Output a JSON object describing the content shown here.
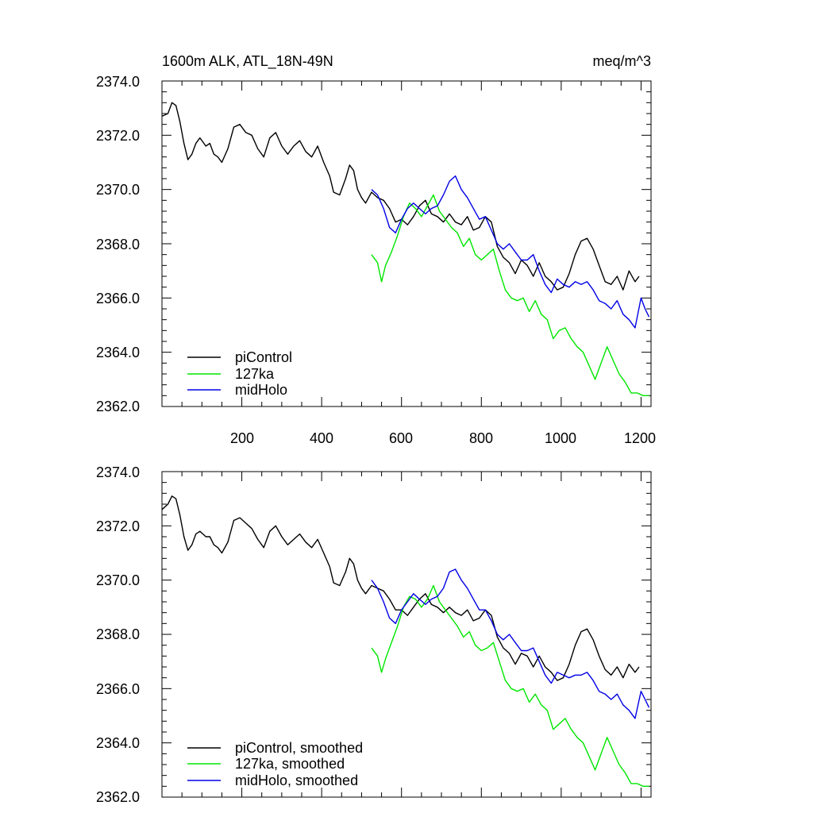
{
  "colors": {
    "piControl": "#000000",
    "127ka": "#00e600",
    "midHolo": "#0000e6"
  },
  "chart_data": [
    {
      "type": "line",
      "title_left": "1600m ALK, ATL_18N-49N",
      "title_right": "meq/m^3",
      "xlabel": "",
      "ylabel": "",
      "xlim": [
        0,
        1225
      ],
      "ylim": [
        2362.0,
        2374.0
      ],
      "yticks": [
        "2374.0",
        "2372.0",
        "2370.0",
        "2368.0",
        "2366.0",
        "2364.0",
        "2362.0"
      ],
      "xticks": [
        "200",
        "400",
        "600",
        "800",
        "1000",
        "1200"
      ],
      "legend_position": "bottom-left",
      "series": [
        {
          "name": "piControl",
          "x": [
            0,
            15,
            25,
            35,
            45,
            55,
            65,
            75,
            85,
            95,
            110,
            120,
            130,
            140,
            150,
            165,
            180,
            195,
            210,
            225,
            240,
            255,
            270,
            285,
            300,
            315,
            330,
            345,
            360,
            375,
            390,
            405,
            420,
            430,
            445,
            460,
            470,
            480,
            490,
            500,
            510,
            525,
            540,
            555,
            570,
            585,
            600,
            615,
            630,
            645,
            660,
            675,
            690,
            705,
            720,
            735,
            750,
            765,
            780,
            795,
            810,
            825,
            840,
            855,
            870,
            885,
            900,
            915,
            930,
            945,
            960,
            975,
            990,
            1005,
            1020,
            1035,
            1050,
            1065,
            1080,
            1095,
            1110,
            1125,
            1140,
            1155,
            1170,
            1185,
            1195
          ],
          "values": [
            2372.7,
            2372.8,
            2373.2,
            2373.1,
            2372.5,
            2371.7,
            2371.1,
            2371.3,
            2371.7,
            2371.9,
            2371.6,
            2371.7,
            2371.3,
            2371.2,
            2371.0,
            2371.5,
            2372.3,
            2372.4,
            2372.1,
            2372.0,
            2371.5,
            2371.2,
            2371.9,
            2372.1,
            2371.6,
            2371.3,
            2371.6,
            2371.8,
            2371.4,
            2371.2,
            2371.6,
            2371.0,
            2370.5,
            2369.9,
            2369.8,
            2370.4,
            2370.9,
            2370.7,
            2370.0,
            2369.7,
            2369.5,
            2369.9,
            2369.7,
            2369.6,
            2369.3,
            2368.8,
            2368.9,
            2368.7,
            2369.0,
            2369.4,
            2369.6,
            2369.1,
            2369.0,
            2368.8,
            2369.1,
            2368.8,
            2368.7,
            2369.0,
            2368.5,
            2368.6,
            2369.0,
            2368.8,
            2367.9,
            2367.5,
            2367.3,
            2366.9,
            2367.4,
            2367.2,
            2366.8,
            2367.3,
            2366.8,
            2366.6,
            2366.3,
            2366.4,
            2366.9,
            2367.6,
            2368.1,
            2368.2,
            2367.8,
            2367.2,
            2366.6,
            2366.5,
            2366.8,
            2366.3,
            2367.0,
            2366.6,
            2366.8
          ]
        },
        {
          "name": "127ka",
          "x": [
            525,
            540,
            550,
            560,
            575,
            590,
            605,
            620,
            635,
            650,
            665,
            680,
            695,
            710,
            725,
            740,
            755,
            770,
            785,
            800,
            815,
            830,
            845,
            860,
            875,
            890,
            905,
            920,
            935,
            950,
            965,
            980,
            995,
            1010,
            1025,
            1040,
            1055,
            1070,
            1085,
            1100,
            1115,
            1130,
            1145,
            1160,
            1175,
            1190,
            1205,
            1220
          ],
          "values": [
            2367.6,
            2367.3,
            2366.6,
            2367.2,
            2367.7,
            2368.3,
            2369.0,
            2369.5,
            2369.3,
            2369.0,
            2369.4,
            2369.8,
            2369.2,
            2368.9,
            2368.6,
            2368.4,
            2367.9,
            2368.2,
            2367.6,
            2367.4,
            2367.6,
            2367.8,
            2367.0,
            2366.3,
            2366.0,
            2365.9,
            2366.0,
            2365.5,
            2365.9,
            2365.4,
            2365.2,
            2364.5,
            2364.8,
            2364.9,
            2364.5,
            2364.2,
            2364.0,
            2363.5,
            2363.0,
            2363.6,
            2364.2,
            2363.7,
            2363.2,
            2362.9,
            2362.5,
            2362.5,
            2362.4,
            2362.4
          ]
        },
        {
          "name": "midHolo",
          "x": [
            525,
            540,
            555,
            570,
            585,
            600,
            615,
            630,
            645,
            660,
            675,
            690,
            705,
            720,
            735,
            750,
            765,
            780,
            795,
            810,
            825,
            840,
            855,
            870,
            885,
            900,
            915,
            930,
            945,
            960,
            975,
            990,
            1005,
            1020,
            1035,
            1050,
            1065,
            1080,
            1095,
            1110,
            1125,
            1140,
            1155,
            1170,
            1185,
            1200,
            1210,
            1220
          ],
          "values": [
            2370.0,
            2369.8,
            2369.3,
            2368.6,
            2368.4,
            2368.9,
            2369.3,
            2369.5,
            2369.3,
            2369.1,
            2369.3,
            2369.4,
            2369.8,
            2370.3,
            2370.5,
            2370.0,
            2369.7,
            2369.3,
            2368.9,
            2369.0,
            2368.5,
            2368.0,
            2367.8,
            2368.0,
            2367.7,
            2367.4,
            2367.4,
            2367.6,
            2367.0,
            2366.5,
            2366.2,
            2366.7,
            2366.5,
            2366.4,
            2366.6,
            2366.5,
            2366.6,
            2366.3,
            2365.9,
            2365.8,
            2365.6,
            2365.9,
            2365.4,
            2365.2,
            2364.9,
            2366.0,
            2365.6,
            2365.3
          ]
        }
      ]
    },
    {
      "type": "line",
      "title_left": "",
      "title_right": "",
      "xlabel": "",
      "ylabel": "",
      "xlim": [
        0,
        1225
      ],
      "ylim": [
        2362.0,
        2374.0
      ],
      "yticks": [
        "2374.0",
        "2372.0",
        "2370.0",
        "2368.0",
        "2366.0",
        "2364.0",
        "2362.0"
      ],
      "xticks": [],
      "legend_position": "bottom-left",
      "series": [
        {
          "name": "piControl, smoothed",
          "x": [
            0,
            15,
            25,
            35,
            45,
            55,
            65,
            75,
            85,
            95,
            110,
            120,
            130,
            140,
            150,
            165,
            180,
            195,
            210,
            225,
            240,
            255,
            270,
            285,
            300,
            315,
            330,
            345,
            360,
            375,
            390,
            405,
            420,
            430,
            445,
            460,
            470,
            480,
            490,
            500,
            510,
            525,
            540,
            555,
            570,
            585,
            600,
            615,
            630,
            645,
            660,
            675,
            690,
            705,
            720,
            735,
            750,
            765,
            780,
            795,
            810,
            825,
            840,
            855,
            870,
            885,
            900,
            915,
            930,
            945,
            960,
            975,
            990,
            1005,
            1020,
            1035,
            1050,
            1065,
            1080,
            1095,
            1110,
            1125,
            1140,
            1155,
            1170,
            1185,
            1195
          ],
          "values": [
            2372.6,
            2372.8,
            2373.1,
            2373.0,
            2372.4,
            2371.6,
            2371.1,
            2371.3,
            2371.7,
            2371.8,
            2371.6,
            2371.6,
            2371.3,
            2371.2,
            2371.0,
            2371.4,
            2372.2,
            2372.3,
            2372.1,
            2371.9,
            2371.5,
            2371.2,
            2371.8,
            2372.0,
            2371.6,
            2371.3,
            2371.5,
            2371.7,
            2371.4,
            2371.2,
            2371.5,
            2371.0,
            2370.5,
            2369.9,
            2369.8,
            2370.3,
            2370.8,
            2370.6,
            2370.0,
            2369.7,
            2369.5,
            2369.8,
            2369.7,
            2369.6,
            2369.3,
            2368.9,
            2368.9,
            2368.7,
            2369.0,
            2369.3,
            2369.5,
            2369.1,
            2369.0,
            2368.8,
            2369.0,
            2368.8,
            2368.7,
            2368.9,
            2368.5,
            2368.6,
            2368.9,
            2368.7,
            2367.9,
            2367.5,
            2367.3,
            2366.9,
            2367.3,
            2367.2,
            2366.8,
            2367.2,
            2366.8,
            2366.6,
            2366.3,
            2366.4,
            2366.9,
            2367.6,
            2368.1,
            2368.2,
            2367.8,
            2367.2,
            2366.7,
            2366.5,
            2366.8,
            2366.4,
            2366.9,
            2366.6,
            2366.8
          ]
        },
        {
          "name": "127ka, smoothed",
          "x": [
            525,
            540,
            550,
            560,
            575,
            590,
            605,
            620,
            635,
            650,
            665,
            680,
            695,
            710,
            725,
            740,
            755,
            770,
            785,
            800,
            815,
            830,
            845,
            860,
            875,
            890,
            905,
            920,
            935,
            950,
            965,
            980,
            995,
            1010,
            1025,
            1040,
            1055,
            1070,
            1085,
            1100,
            1115,
            1130,
            1145,
            1160,
            1175,
            1190,
            1205,
            1220
          ],
          "values": [
            2367.5,
            2367.2,
            2366.6,
            2367.1,
            2367.7,
            2368.3,
            2369.0,
            2369.4,
            2369.3,
            2369.0,
            2369.3,
            2369.8,
            2369.2,
            2368.9,
            2368.6,
            2368.3,
            2367.9,
            2368.1,
            2367.6,
            2367.4,
            2367.5,
            2367.7,
            2367.0,
            2366.3,
            2366.0,
            2365.9,
            2366.0,
            2365.5,
            2365.8,
            2365.4,
            2365.2,
            2364.5,
            2364.7,
            2364.9,
            2364.5,
            2364.2,
            2364.0,
            2363.5,
            2363.0,
            2363.6,
            2364.2,
            2363.7,
            2363.2,
            2362.9,
            2362.5,
            2362.5,
            2362.4,
            2362.4
          ]
        },
        {
          "name": "midHolo, smoothed",
          "x": [
            525,
            540,
            555,
            570,
            585,
            600,
            615,
            630,
            645,
            660,
            675,
            690,
            705,
            720,
            735,
            750,
            765,
            780,
            795,
            810,
            825,
            840,
            855,
            870,
            885,
            900,
            915,
            930,
            945,
            960,
            975,
            990,
            1005,
            1020,
            1035,
            1050,
            1065,
            1080,
            1095,
            1110,
            1125,
            1140,
            1155,
            1170,
            1185,
            1200,
            1210,
            1220
          ],
          "values": [
            2370.0,
            2369.7,
            2369.2,
            2368.6,
            2368.4,
            2368.9,
            2369.2,
            2369.5,
            2369.3,
            2369.1,
            2369.3,
            2369.4,
            2369.7,
            2370.3,
            2370.4,
            2370.0,
            2369.7,
            2369.3,
            2368.9,
            2368.9,
            2368.5,
            2368.0,
            2367.8,
            2368.0,
            2367.7,
            2367.4,
            2367.4,
            2367.5,
            2367.0,
            2366.5,
            2366.2,
            2366.6,
            2366.5,
            2366.4,
            2366.5,
            2366.5,
            2366.6,
            2366.3,
            2365.9,
            2365.8,
            2365.6,
            2365.8,
            2365.4,
            2365.2,
            2364.9,
            2365.9,
            2365.6,
            2365.3
          ]
        }
      ]
    }
  ]
}
